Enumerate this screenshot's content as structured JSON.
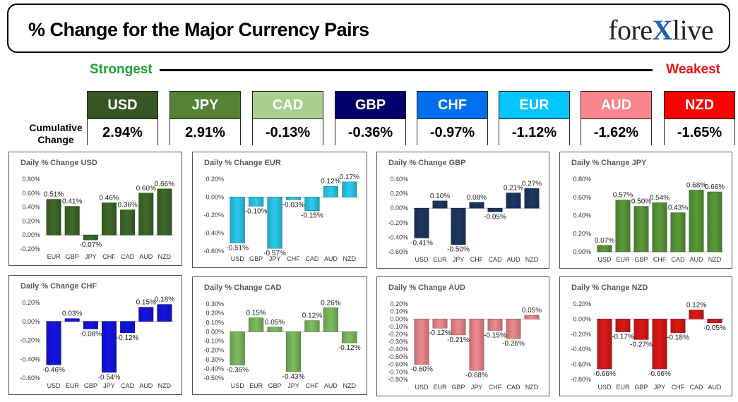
{
  "header": {
    "title": "% Change for the Major Currency Pairs",
    "logo": {
      "part1": "fore",
      "part2": "X",
      "part3": "live"
    }
  },
  "ranking": {
    "strongest_label": "Strongest",
    "weakest_label": "Weakest",
    "cumulative_label_line1": "Cumulative",
    "cumulative_label_line2": "Change",
    "currencies": [
      {
        "code": "USD",
        "value": "2.94%",
        "color": "#375623"
      },
      {
        "code": "JPY",
        "value": "2.91%",
        "color": "#548235"
      },
      {
        "code": "CAD",
        "value": "-0.13%",
        "color": "#a9d08e"
      },
      {
        "code": "GBP",
        "value": "-0.36%",
        "color": "#00006a"
      },
      {
        "code": "CHF",
        "value": "-0.97%",
        "color": "#0070f0"
      },
      {
        "code": "EUR",
        "value": "-1.12%",
        "color": "#00c5ff"
      },
      {
        "code": "AUD",
        "value": "-1.62%",
        "color": "#f8868c"
      },
      {
        "code": "NZD",
        "value": "-1.65%",
        "color": "#ff0000"
      }
    ]
  },
  "chart_data": [
    {
      "type": "bar",
      "title": "Daily % Change USD",
      "color": "#3e6b2a",
      "categories": [
        "EUR",
        "GBP",
        "JPY",
        "CHF",
        "CAD",
        "AUD",
        "NZD"
      ],
      "values": [
        0.51,
        0.41,
        -0.07,
        0.46,
        0.36,
        0.6,
        0.66
      ],
      "labels": [
        "0.51%",
        "0.41%",
        "-0.07%",
        "0.46%",
        "0.36%",
        "0.60%",
        "0.66%"
      ],
      "ylim": [
        -0.2,
        0.8
      ],
      "ticks": [
        "-0.20%",
        "0.00%",
        "0.20%",
        "0.40%",
        "0.60%",
        "0.80%"
      ]
    },
    {
      "type": "bar",
      "title": "Daily % Change EUR",
      "color": "#2ccdf0",
      "categories": [
        "USD",
        "GBP",
        "JPY",
        "CHF",
        "CAD",
        "AUD",
        "NZD"
      ],
      "values": [
        -0.51,
        -0.1,
        -0.57,
        -0.03,
        -0.15,
        0.12,
        0.17
      ],
      "labels": [
        "-0.51%",
        "-0.10%",
        "-0.57%",
        "-0.03%",
        "-0.15%",
        "0.12%",
        "0.17%"
      ],
      "ylim": [
        -0.6,
        0.2
      ],
      "ticks": [
        "-0.60%",
        "-0.40%",
        "-0.20%",
        "0.00%",
        "0.20%"
      ]
    },
    {
      "type": "bar",
      "title": "Daily % Change GBP",
      "color": "#1f3864",
      "categories": [
        "USD",
        "EUR",
        "JPY",
        "CHF",
        "CAD",
        "AUD",
        "NZD"
      ],
      "values": [
        -0.41,
        0.1,
        -0.5,
        0.08,
        -0.05,
        0.21,
        0.27
      ],
      "labels": [
        "-0.41%",
        "0.10%",
        "-0.50%",
        "0.08%",
        "-0.05%",
        "0.21%",
        "0.27%"
      ],
      "ylim": [
        -0.6,
        0.4
      ],
      "ticks": [
        "-0.60%",
        "-0.40%",
        "-0.20%",
        "0.00%",
        "0.20%",
        "0.40%"
      ]
    },
    {
      "type": "bar",
      "title": "Daily % Change JPY",
      "color": "#5a9a3a",
      "categories": [
        "USD",
        "EUR",
        "GBP",
        "CHF",
        "CAD",
        "AUD",
        "NZD"
      ],
      "values": [
        0.07,
        0.57,
        0.5,
        0.54,
        0.43,
        0.68,
        0.66
      ],
      "labels": [
        "0.07%",
        "0.57%",
        "0.50%",
        "0.54%",
        "0.43%",
        "0.68%",
        "0.66%"
      ],
      "ylim": [
        0,
        0.8
      ],
      "ticks": [
        "0.00%",
        "0.20%",
        "0.40%",
        "0.60%",
        "0.80%"
      ]
    },
    {
      "type": "bar",
      "title": "Daily % Change CHF",
      "color": "#1414e6",
      "categories": [
        "USD",
        "EUR",
        "GBP",
        "JPY",
        "CAD",
        "AUD",
        "NZD"
      ],
      "values": [
        -0.46,
        0.03,
        -0.08,
        -0.54,
        -0.12,
        0.15,
        0.18
      ],
      "labels": [
        "-0.46%",
        "0.03%",
        "-0.08%",
        "-0.54%",
        "-0.12%",
        "0.15%",
        "0.18%"
      ],
      "ylim": [
        -0.6,
        0.2
      ],
      "ticks": [
        "-0.60%",
        "-0.40%",
        "-0.20%",
        "0.00%",
        "0.20%"
      ]
    },
    {
      "type": "bar",
      "title": "Daily % Change CAD",
      "color": "#7fbf5f",
      "categories": [
        "USD",
        "EUR",
        "GBP",
        "JPY",
        "CHF",
        "AUD",
        "NZD"
      ],
      "values": [
        -0.36,
        0.15,
        0.05,
        -0.43,
        0.12,
        0.26,
        -0.12
      ],
      "labels": [
        "-0.36%",
        "0.15%",
        "0.05%",
        "-0.43%",
        "0.12%",
        "0.26%",
        "-0.12%"
      ],
      "ylim": [
        -0.5,
        0.3
      ],
      "ticks": [
        "-0.50%",
        "-0.40%",
        "-0.30%",
        "-0.20%",
        "-0.10%",
        "0.00%",
        "0.10%",
        "0.20%",
        "0.30%"
      ]
    },
    {
      "type": "bar",
      "title": "Daily % Change AUD",
      "color": "#ef8a8e",
      "categories": [
        "USD",
        "EUR",
        "GBP",
        "JPY",
        "CHF",
        "CAD",
        "NZD"
      ],
      "values": [
        -0.6,
        -0.12,
        -0.21,
        -0.68,
        -0.15,
        -0.26,
        0.05
      ],
      "labels": [
        "-0.60%",
        "-0.12%",
        "-0.21%",
        "-0.68%",
        "-0.15%",
        "-0.26%",
        "0.05%"
      ],
      "ylim": [
        -0.8,
        0.2
      ],
      "ticks": [
        "-0.80%",
        "-0.70%",
        "-0.60%",
        "-0.50%",
        "-0.40%",
        "-0.30%",
        "-0.20%",
        "-0.10%",
        "0.00%",
        "0.10%",
        "0.20%"
      ]
    },
    {
      "type": "bar",
      "title": "Daily % Change NZD",
      "color": "#e01818",
      "categories": [
        "USD",
        "EUR",
        "GBP",
        "JPY",
        "CHF",
        "CAD",
        "AUD"
      ],
      "values": [
        -0.66,
        -0.17,
        -0.27,
        -0.66,
        -0.18,
        0.12,
        -0.05
      ],
      "labels": [
        "-0.66%",
        "-0.17%",
        "-0.27%",
        "-0.66%",
        "-0.18%",
        "0.12%",
        "-0.05%"
      ],
      "ylim": [
        -0.8,
        0.2
      ],
      "ticks": [
        "-0.80%",
        "-0.60%",
        "-0.40%",
        "-0.20%",
        "0.00%",
        "0.20%"
      ]
    }
  ]
}
